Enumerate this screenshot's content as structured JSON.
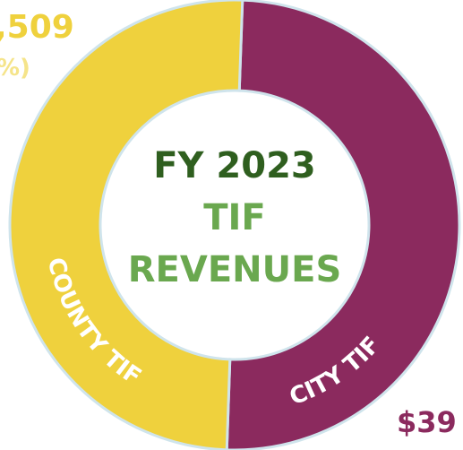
{
  "chart_data": {
    "type": "donut",
    "title": "FY 2023",
    "subtitle": [
      "TIF",
      "REVENUES"
    ],
    "categories": [
      "CITY TIF",
      "COUNTY TIF"
    ],
    "values": [
      50,
      50
    ],
    "colors": [
      "#8b2a5e",
      "#efd13d"
    ],
    "annotations": [
      ",509",
      "%)",
      "$39"
    ]
  }
}
